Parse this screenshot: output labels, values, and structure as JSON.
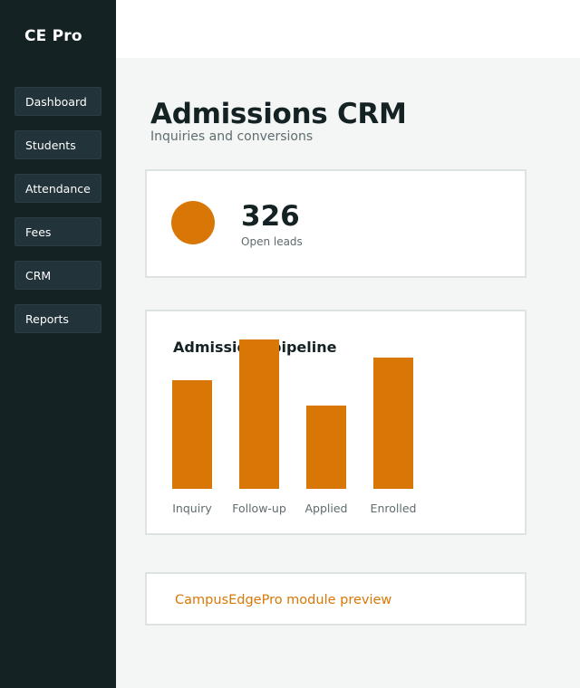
{
  "sidebar": {
    "brand": "CE Pro",
    "items": [
      {
        "label": "Dashboard"
      },
      {
        "label": "Students"
      },
      {
        "label": "Attendance"
      },
      {
        "label": "Fees"
      },
      {
        "label": "CRM"
      },
      {
        "label": "Reports"
      }
    ]
  },
  "main": {
    "title": "Admissions CRM",
    "subtitle": "Inquiries and conversions"
  },
  "kpi": {
    "value": "326",
    "label": "Open leads"
  },
  "chart": {
    "title": "Admissions pipeline"
  },
  "chart_data": {
    "type": "bar",
    "title": "Admissions pipeline",
    "categories": [
      "Inquiry",
      "Follow-up",
      "Applied",
      "Enrolled"
    ],
    "values": [
      120,
      165,
      92,
      145
    ],
    "ylim": [
      0,
      165
    ],
    "color": "#d97706",
    "xlabel": "",
    "ylabel": "",
    "grid": false
  },
  "footer_link": {
    "label": "CampusEdgePro module preview"
  },
  "colors": {
    "accent": "#d97706",
    "sidebar_bg": "#142224",
    "nav_item_bg": "#22333a",
    "page_bg": "#f4f6f6"
  }
}
